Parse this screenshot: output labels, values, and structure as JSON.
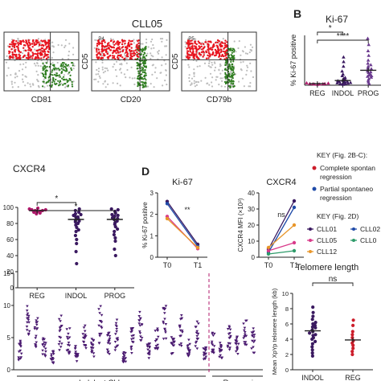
{
  "panel_a": {
    "title": "CLL05",
    "plots": [
      {
        "xlabel": "CD81",
        "gate_label": "",
        "ylabel": ""
      },
      {
        "xlabel": "CD20",
        "gate_label": "P4",
        "ylabel": "CD5"
      },
      {
        "xlabel": "CD79b",
        "gate_label": "P5",
        "ylabel": "CD5"
      }
    ],
    "colors": {
      "cll": "#e8141e",
      "normal": "#2e7d1f",
      "other": "#bdbdbd"
    }
  },
  "panel_b": {
    "letter": "B"
  },
  "panel_d": {
    "letter": "D"
  },
  "chart_data": [
    {
      "id": "ki67_groups",
      "type": "scatter",
      "title": "Ki-67",
      "ylabel": "% Ki-67 positive",
      "categories": [
        "REG",
        "INDOL",
        "PROG"
      ],
      "series": [
        {
          "category": "REG",
          "mean": 0.5,
          "values": [
            0.2,
            0.3,
            0.4,
            0.5,
            0.6,
            0.3,
            0.4,
            0.7,
            0.5,
            0.3
          ],
          "color": "#b0196b"
        },
        {
          "category": "INDOL",
          "mean": 1.5,
          "values": [
            0.2,
            0.4,
            0.6,
            0.8,
            1.0,
            1.2,
            1.5,
            1.8,
            2.0,
            2.4,
            3.0,
            3.5,
            4.5,
            6.0,
            7.5,
            9.0,
            0.3,
            0.5,
            0.9,
            1.1,
            1.4,
            0.7
          ],
          "color": "#3a1960"
        },
        {
          "category": "PROG",
          "mean": 4.8,
          "values": [
            0.5,
            1.0,
            1.5,
            2.0,
            2.5,
            3.0,
            3.5,
            4.0,
            4.5,
            5.0,
            5.5,
            6.0,
            7.0,
            8.0,
            9.5,
            11.0,
            13.0,
            15.0,
            3.2,
            4.2,
            5.2,
            2.8,
            6.5
          ],
          "color": "#6b3a8f"
        }
      ],
      "significance": [
        {
          "from": "REG",
          "to": "INDOL",
          "label": "*"
        },
        {
          "from": "REG",
          "to": "PROG",
          "label": "****"
        }
      ]
    },
    {
      "id": "cxcr4_groups",
      "type": "scatter",
      "title": "CXCR4",
      "ylabel": "",
      "ylim": [
        0,
        100
      ],
      "yticks": [
        0,
        20,
        40,
        60,
        80,
        100
      ],
      "categories": [
        "REG",
        "INDOL",
        "PROG"
      ],
      "series": [
        {
          "category": "REG",
          "mean": 96,
          "values": [
            92,
            94,
            95,
            96,
            97,
            98,
            99,
            95,
            93,
            97,
            96
          ],
          "color": "#b0196b"
        },
        {
          "category": "INDOL",
          "mean": 85,
          "values": [
            98,
            96,
            94,
            92,
            90,
            88,
            86,
            84,
            82,
            80,
            78,
            75,
            72,
            70,
            65,
            60,
            55,
            45,
            30,
            88,
            91,
            83
          ],
          "color": "#3a1960"
        },
        {
          "category": "PROG",
          "mean": 85,
          "values": [
            98,
            97,
            95,
            93,
            91,
            89,
            87,
            85,
            83,
            81,
            79,
            76,
            73,
            70,
            66,
            62,
            58,
            48,
            40,
            86,
            90
          ],
          "color": "#3a1960"
        }
      ],
      "significance": [
        {
          "from": "REG",
          "to": "INDOL",
          "label": "*"
        },
        {
          "from": "REG",
          "to": "PROG",
          "label": "*"
        }
      ]
    },
    {
      "id": "ki67_time",
      "type": "line",
      "title": "Ki-67",
      "ylabel": "% Ki-67 positive",
      "ylim": [
        0,
        3
      ],
      "yticks": [
        0,
        1,
        2,
        3
      ],
      "x": [
        "T0",
        "T1"
      ],
      "annotation": "**",
      "series": [
        {
          "values": [
            2.6,
            0.6
          ],
          "color": "#3a1960"
        },
        {
          "values": [
            2.5,
            0.5
          ],
          "color": "#1f4aa8"
        },
        {
          "values": [
            1.9,
            0.4
          ],
          "color": "#d93a8a"
        },
        {
          "values": [
            1.8,
            0.45
          ],
          "color": "#e8962a"
        }
      ]
    },
    {
      "id": "cxcr4_time",
      "type": "line",
      "title": "CXCR4",
      "ylabel": "CXCR4 MFI (×10³)",
      "ylim": [
        0,
        40
      ],
      "yticks": [
        0,
        10,
        20,
        30,
        40
      ],
      "x": [
        "T0",
        "T1"
      ],
      "annotation": "ns",
      "series": [
        {
          "values": [
            5,
            35
          ],
          "color": "#3a1960"
        },
        {
          "values": [
            3,
            31
          ],
          "color": "#1f4aa8"
        },
        {
          "values": [
            6,
            20
          ],
          "color": "#e8962a"
        },
        {
          "values": [
            4,
            9
          ],
          "color": "#d93a8a"
        },
        {
          "values": [
            2,
            4
          ],
          "color": "#2e9b6a"
        }
      ]
    },
    {
      "id": "ki67_cases",
      "type": "scatter",
      "title": "",
      "ylim": [
        0,
        15
      ],
      "yticks": [
        0,
        5,
        10,
        15
      ],
      "xlabel_left": "Indolent CLL cases",
      "xlabel_right": "Regression",
      "num_cases": 30,
      "divider_after": 24,
      "case_centers": [
        3.0,
        7.5,
        6.0,
        3.5,
        2.0,
        6.0,
        4.5,
        2.5,
        5.0,
        3.5,
        7.0,
        4.0,
        5.5,
        2.0,
        4.5,
        6.5,
        3.0,
        5.0,
        7.0,
        4.0,
        6.0,
        3.5,
        5.5,
        2.5,
        4.0,
        3.0,
        5.0,
        4.0,
        6.0,
        4.5
      ],
      "case_spreads": [
        1.5,
        3.0,
        2.5,
        1.5,
        1.0,
        3.0,
        2.0,
        1.2,
        2.0,
        1.5,
        3.0,
        1.8,
        2.5,
        0.8,
        2.0,
        2.8,
        1.3,
        2.0,
        3.0,
        1.8,
        2.5,
        1.5,
        2.2,
        1.0,
        1.8,
        1.2,
        2.0,
        1.6,
        2.4,
        2.0
      ],
      "color": "#4a1a70"
    },
    {
      "id": "telomere",
      "type": "scatter",
      "title": "Telomere length",
      "ylabel": "Mean XpYp telomere length (kb)",
      "ylim": [
        0,
        10
      ],
      "yticks": [
        0,
        2,
        4,
        6,
        8,
        10
      ],
      "categories": [
        "INDOL",
        "REG"
      ],
      "series": [
        {
          "category": "INDOL",
          "mean": 5.1,
          "values": [
            8.2,
            7.5,
            7.0,
            6.6,
            6.2,
            5.8,
            5.5,
            5.2,
            5.0,
            4.8,
            4.5,
            4.2,
            4.0,
            3.7,
            3.4,
            3.0,
            2.6,
            2.2,
            1.8,
            5.6,
            4.6,
            6.0
          ],
          "color": "#3a1960"
        },
        {
          "category": "REG",
          "mean": 3.9,
          "values": [
            6.5,
            5.8,
            5.0,
            4.6,
            4.2,
            3.8,
            3.5,
            3.2,
            2.8,
            2.4,
            2.0
          ],
          "color": "#cc1d2b"
        }
      ],
      "significance": [
        {
          "from": "INDOL",
          "to": "REG",
          "label": "ns"
        }
      ]
    }
  ],
  "legend": {
    "key1_title": "KEY (Fig. 2B-C):",
    "key1_items": [
      {
        "label": "Complete spontan",
        "label2": "regression",
        "color": "#cc1d2b"
      },
      {
        "label": "Partial spontaneo",
        "label2": "regression",
        "color": "#1f4aa8"
      }
    ],
    "key2_title": "KEY (Fig. 2D)",
    "key2_items": [
      {
        "label": "CLL01",
        "color": "#3a1960"
      },
      {
        "label": "CLL02",
        "color": "#1f4aa8"
      },
      {
        "label": "CLL05",
        "color": "#d93a8a"
      },
      {
        "label": "CLL0",
        "color": "#2e9b6a"
      },
      {
        "label": "CLL12",
        "color": "#e8962a"
      }
    ]
  }
}
